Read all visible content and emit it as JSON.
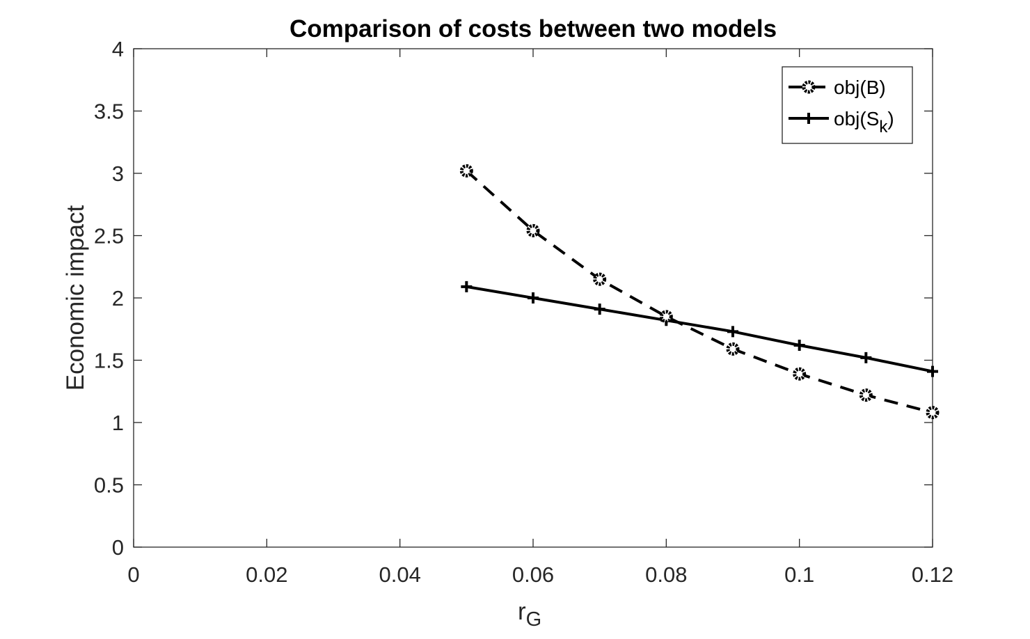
{
  "chart_data": {
    "type": "line",
    "title": "Comparison of costs between two models",
    "xlabel": {
      "main": "r",
      "sub": "G"
    },
    "ylabel": "Economic impact",
    "xlim": [
      0,
      0.12
    ],
    "ylim": [
      0,
      4
    ],
    "xticks": [
      0,
      0.02,
      0.04,
      0.06,
      0.08,
      0.1,
      0.12
    ],
    "xtick_labels": [
      "0",
      "0.02",
      "0.04",
      "0.06",
      "0.08",
      "0.1",
      "0.12"
    ],
    "yticks": [
      0,
      0.5,
      1,
      1.5,
      2,
      2.5,
      3,
      3.5,
      4
    ],
    "ytick_labels": [
      "0",
      "0.5",
      "1",
      "1.5",
      "2",
      "2.5",
      "3",
      "3.5",
      "4"
    ],
    "grid": false,
    "legend_position": "top-right",
    "x": [
      0.05,
      0.06,
      0.07,
      0.08,
      0.09,
      0.1,
      0.11,
      0.12
    ],
    "series": [
      {
        "name": "obj(B)",
        "name_parts": {
          "main": "obj(B)"
        },
        "style": "dashed",
        "marker": "circle",
        "color": "#000000",
        "values": [
          3.02,
          2.54,
          2.15,
          1.85,
          1.59,
          1.39,
          1.22,
          1.08
        ]
      },
      {
        "name": "obj(S_k)",
        "name_parts": {
          "main": "obj(S",
          "sub": "k",
          "tail": ")"
        },
        "style": "solid",
        "marker": "plus",
        "color": "#000000",
        "values": [
          2.09,
          2.0,
          1.91,
          1.82,
          1.73,
          1.62,
          1.52,
          1.41
        ]
      }
    ]
  }
}
